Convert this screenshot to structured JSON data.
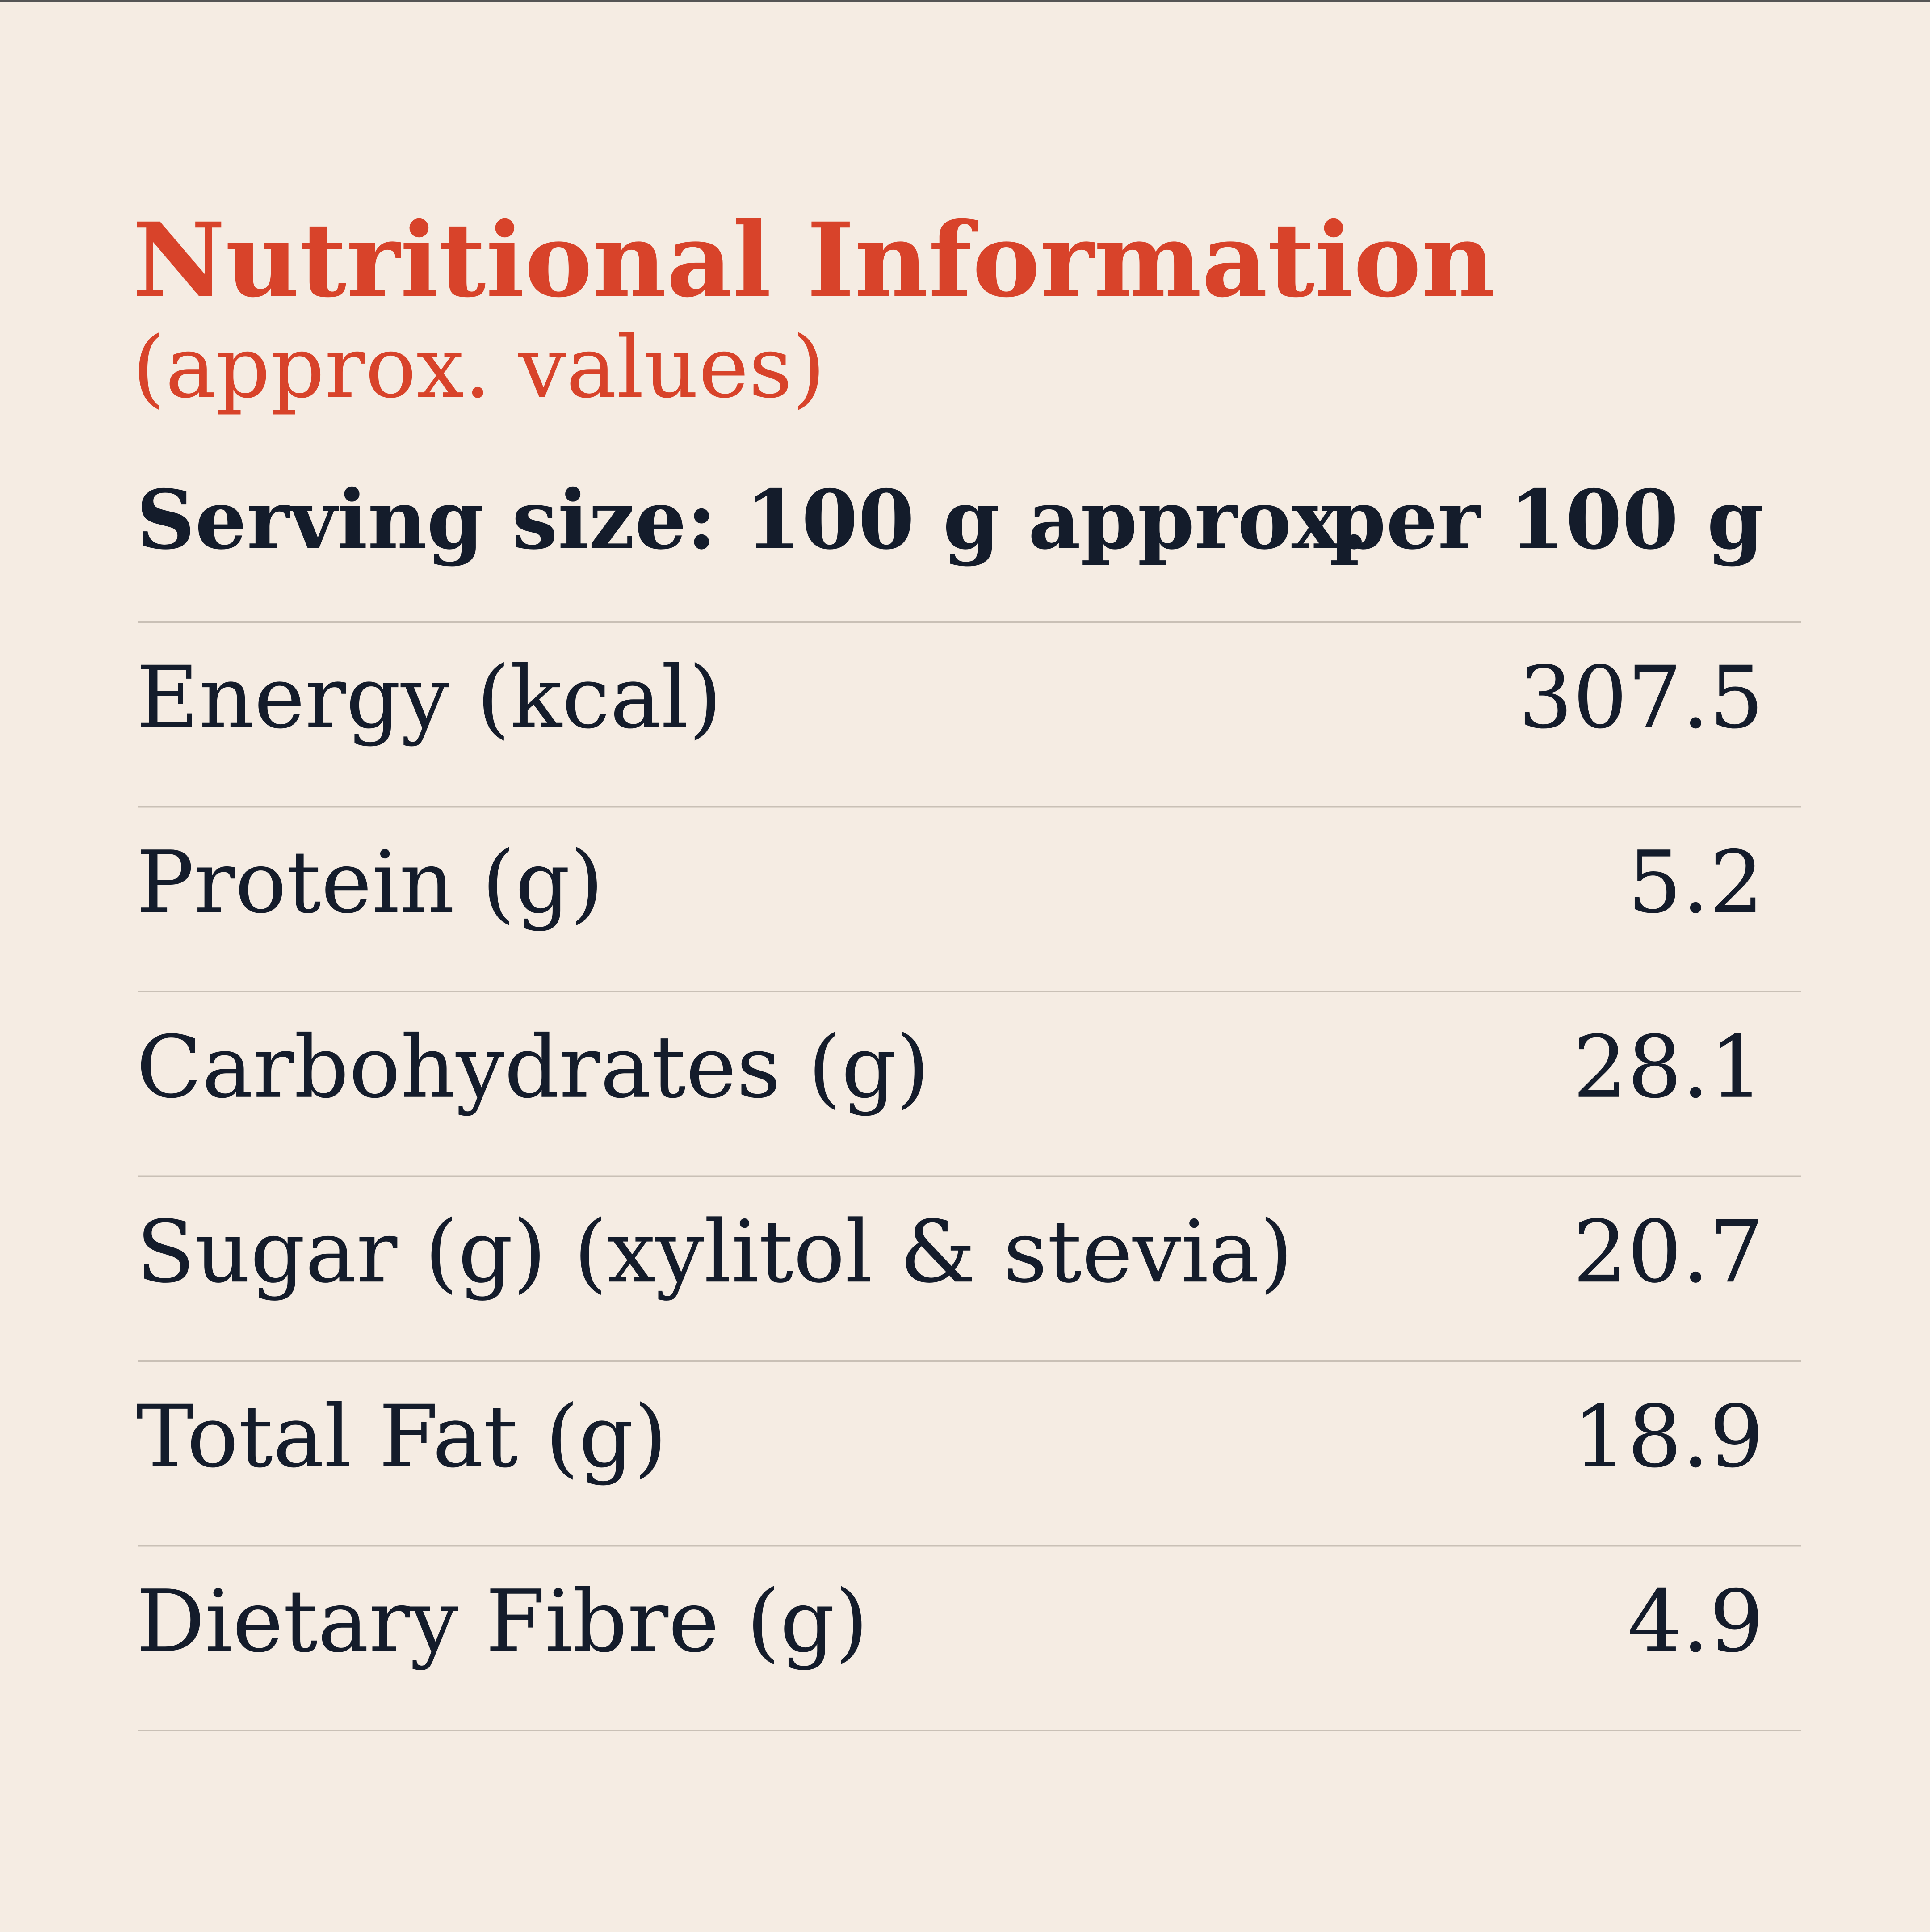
{
  "header": {
    "title": "Nutritional Information",
    "subtitle": "(approx. values)"
  },
  "table": {
    "header": [
      "Serving size: 100 g approx.",
      "per 100 g"
    ],
    "rows": [
      [
        "Energy (kcal)",
        "307.5"
      ],
      [
        "Protein (g)",
        "5.2"
      ],
      [
        "Carbohydrates (g)",
        "28.1"
      ],
      [
        "Sugar (g) (xylitol & stevia)",
        "20.7"
      ],
      [
        "Total Fat (g)",
        "18.9"
      ],
      [
        "Dietary Fibre (g)",
        "4.9"
      ]
    ]
  }
}
